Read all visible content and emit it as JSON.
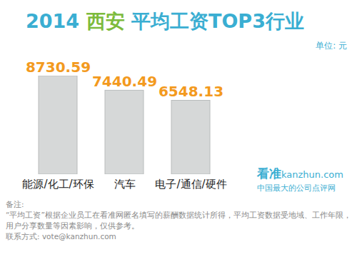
{
  "chart_data": {
    "type": "bar",
    "title": "2014 西安 平均工资TOP3行业",
    "ylabel": "单位: 元",
    "categories": [
      "能源/化工/环保",
      "汽车",
      "电子/通信/硬件"
    ],
    "values": [
      8730.59,
      7440.49,
      6548.13
    ],
    "color": "#d6d8d8",
    "data_labels": true,
    "tick_labels": "x",
    "grid": false,
    "annotations": {
      "watermark": [
        "看准",
        "kanzhun.com",
        "中国最大的公司点评网"
      ],
      "notes": [
        "备注:",
        "“平均工资”根据企业员工在看准网匿名填写的薪酬数据统计所得，平均工资数据受地域、工作年限，用户分享数量等因素影响，仅供参考。",
        "联系方式: vote@kanzhun.com"
      ]
    }
  }
}
